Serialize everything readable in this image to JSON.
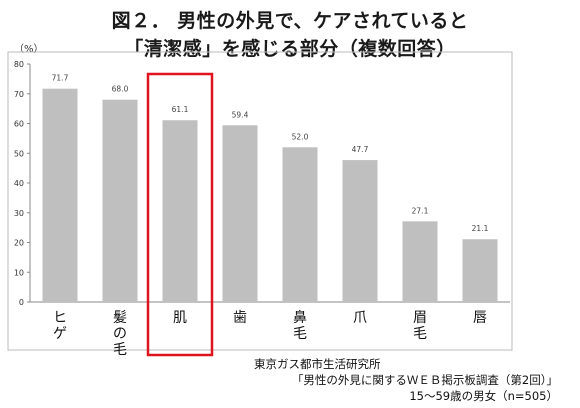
{
  "title": {
    "line1": "図２． 男性の外見で、ケアされていると",
    "line2": "「清潔感」を感じる部分（複数回答）"
  },
  "source": {
    "line1": "東京ガス都市生活研究所",
    "line2": "「男性の外見に関するＷＥＢ掲示板調査（第2回）」",
    "line3": "15～59歳の男女（n=505）"
  },
  "chart_data": {
    "type": "bar",
    "ylabel": "（%）",
    "ylim": [
      0,
      80
    ],
    "yticks": [
      0,
      10,
      20,
      30,
      40,
      50,
      60,
      70,
      80
    ],
    "categories": [
      "ヒゲ",
      "髪の毛",
      "肌",
      "歯",
      "鼻毛",
      "爪",
      "眉毛",
      "唇"
    ],
    "category_lines": [
      [
        "ヒ",
        "ゲ"
      ],
      [
        "髪",
        "の",
        "毛"
      ],
      [
        "肌"
      ],
      [
        "歯"
      ],
      [
        "鼻",
        "毛"
      ],
      [
        "爪"
      ],
      [
        "眉",
        "毛"
      ],
      [
        "唇"
      ]
    ],
    "values": [
      71.7,
      68.0,
      61.1,
      59.4,
      52.0,
      47.7,
      27.1,
      21.1
    ],
    "value_labels": [
      "71.7",
      "68.0",
      "61.1",
      "59.4",
      "52.0",
      "47.7",
      "27.1",
      "21.1"
    ],
    "highlight_index": 2,
    "colors": {
      "bar": "#bfbfbf",
      "highlight_box": "#e0141e",
      "axis": "#888888",
      "frame": "#bbbbbb"
    },
    "grid": false
  }
}
